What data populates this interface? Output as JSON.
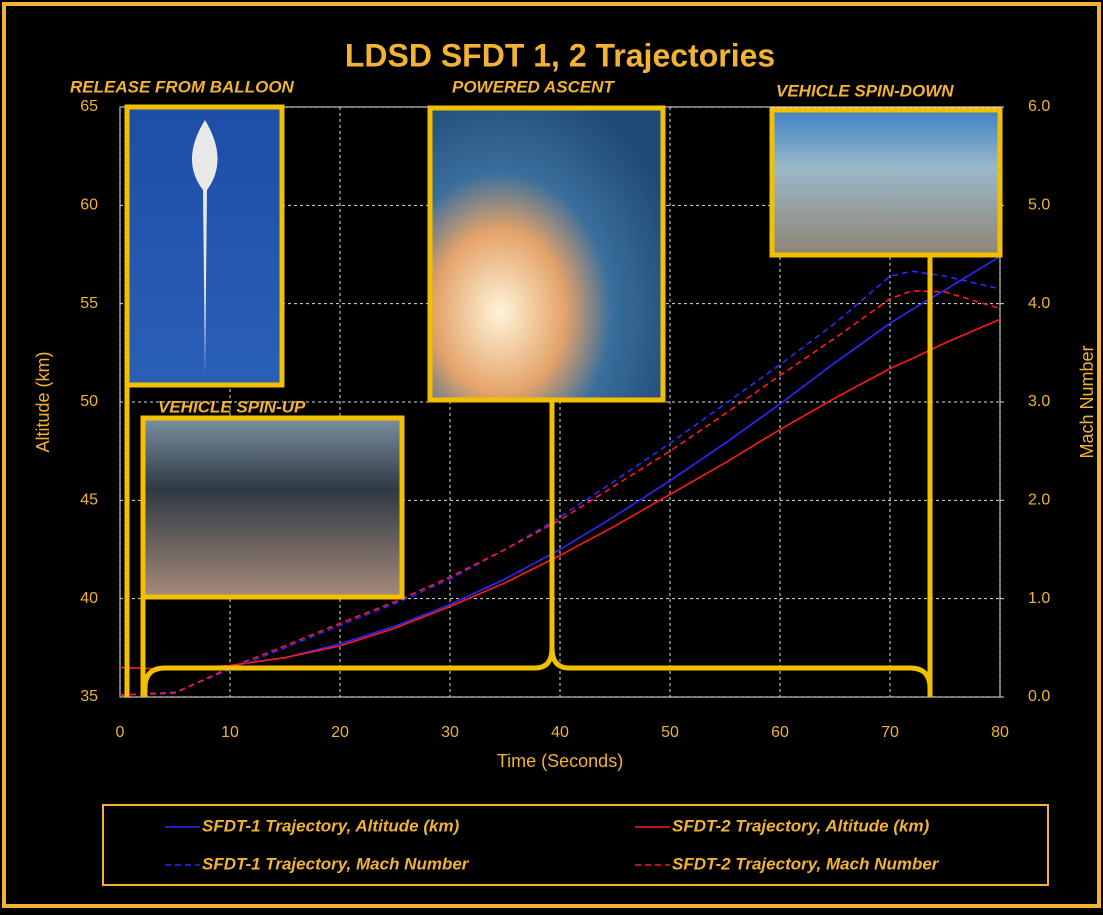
{
  "chart_data": {
    "type": "line",
    "title": "LDSD SFDT 1, 2 Trajectories",
    "x_label": "Time (Seconds)",
    "y_label": "Altitude (km)",
    "y2_label": "Mach Number",
    "annotations": [
      "RELEASE FROM BALLOON",
      "POWERED ASCENT",
      "VEHICLE SPIN-DOWN",
      "VEHICLE SPIN-UP"
    ],
    "x": [
      0,
      5,
      10,
      15,
      20,
      25,
      30,
      35,
      40,
      45,
      50,
      55,
      60,
      65,
      70,
      72,
      75,
      80
    ],
    "series": [
      {
        "name": "SFDT-1 Trajectory, Altitude (km)",
        "color": "#2a2aff",
        "linestyle": "solid",
        "values": [
          36.5,
          36.4,
          36.6,
          37.0,
          37.7,
          38.6,
          39.7,
          41.0,
          42.5,
          44.2,
          46.0,
          47.9,
          49.9,
          52.0,
          54.0,
          54.7,
          55.7,
          57.4
        ]
      },
      {
        "name": "SFDT-2 Trajectory, Altitude (km)",
        "color": "#ff1a1a",
        "linestyle": "solid",
        "values": [
          36.5,
          36.4,
          36.6,
          37.0,
          37.6,
          38.5,
          39.6,
          40.8,
          42.2,
          43.7,
          45.3,
          46.9,
          48.6,
          50.2,
          51.7,
          52.2,
          53.0,
          54.2
        ]
      },
      {
        "name": "SFDT-1 Trajectory, Mach Number",
        "color": "#2a2aff",
        "linestyle": "dashed",
        "axis": "y2",
        "values": [
          0.02,
          0.05,
          0.28,
          0.5,
          0.73,
          0.95,
          1.2,
          1.5,
          1.83,
          2.2,
          2.58,
          2.98,
          3.38,
          3.8,
          4.28,
          4.33,
          4.28,
          4.15
        ]
      },
      {
        "name": "SFDT-2 Trajectory, Mach Number",
        "color": "#ff1a1a",
        "linestyle": "dashed",
        "axis": "y2",
        "values": [
          0.02,
          0.04,
          0.3,
          0.52,
          0.75,
          0.97,
          1.22,
          1.5,
          1.8,
          2.15,
          2.5,
          2.88,
          3.27,
          3.65,
          4.05,
          4.13,
          4.12,
          3.95
        ]
      }
    ],
    "xlim": [
      0,
      80
    ],
    "xticks": [
      0,
      10,
      20,
      30,
      40,
      50,
      60,
      70,
      80
    ],
    "ylim": [
      35,
      65
    ],
    "yticks": [
      35,
      40,
      45,
      50,
      55,
      60,
      65
    ],
    "y2lim": [
      0,
      6
    ],
    "y2ticks": [
      {
        "value": 0,
        "label": "0.0"
      },
      {
        "value": 1,
        "label": "1.0"
      },
      {
        "value": 2,
        "label": "2.0"
      },
      {
        "value": 3,
        "label": "3.0"
      },
      {
        "value": 4,
        "label": "4.0"
      },
      {
        "value": 5,
        "label": "5.0"
      },
      {
        "value": 6,
        "label": "6.0"
      }
    ],
    "grid": true
  }
}
